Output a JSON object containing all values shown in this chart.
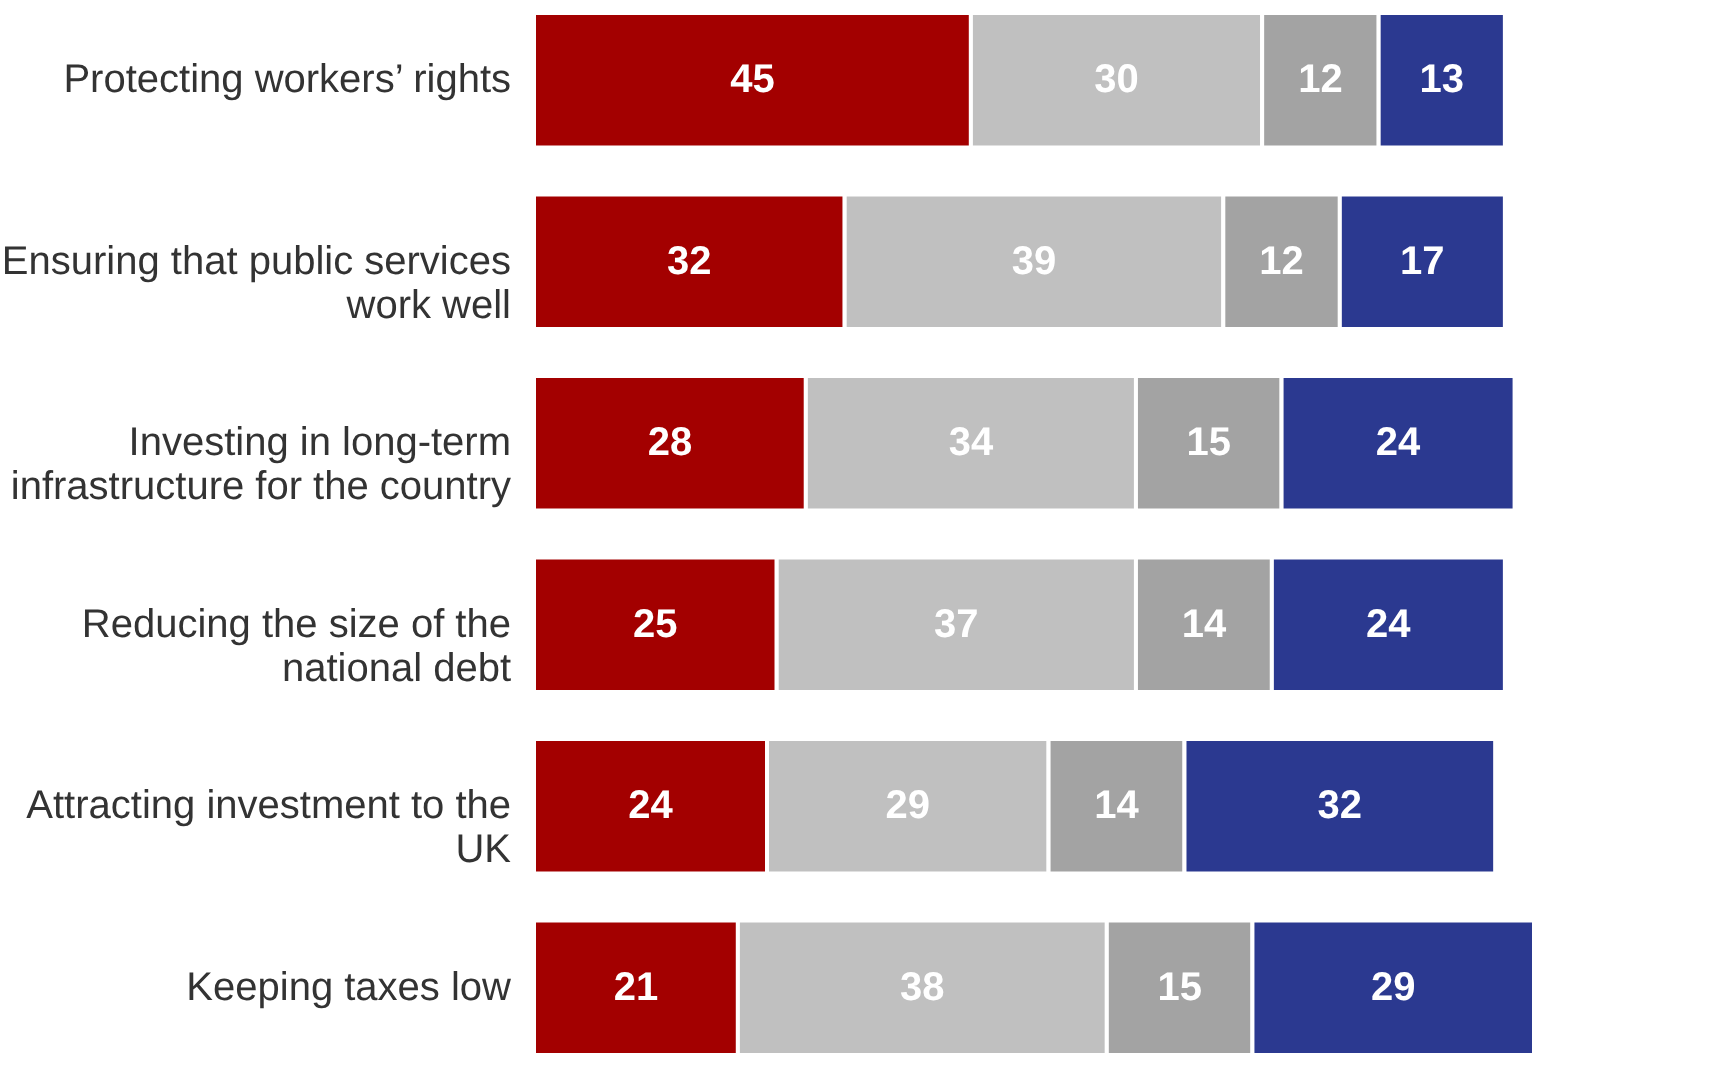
{
  "chart_data": {
    "type": "bar",
    "orientation": "horizontal",
    "stacked": true,
    "data_labels": true,
    "legend": false,
    "categories": [
      "Protecting workers’ rights",
      "Ensuring that public services work well",
      "Investing in long-term infrastructure for the country",
      "Reducing the size of the national debt",
      "Attracting investment to the UK",
      "Keeping taxes low"
    ],
    "series": [
      {
        "color": "#a30000",
        "values": [
          45,
          32,
          28,
          25,
          24,
          21
        ]
      },
      {
        "color": "#c0c0c0",
        "values": [
          30,
          39,
          34,
          37,
          29,
          38
        ]
      },
      {
        "color": "#a3a3a3",
        "values": [
          12,
          12,
          15,
          14,
          14,
          15
        ]
      },
      {
        "color": "#2b3990",
        "values": [
          13,
          17,
          24,
          24,
          32,
          29
        ]
      }
    ]
  }
}
